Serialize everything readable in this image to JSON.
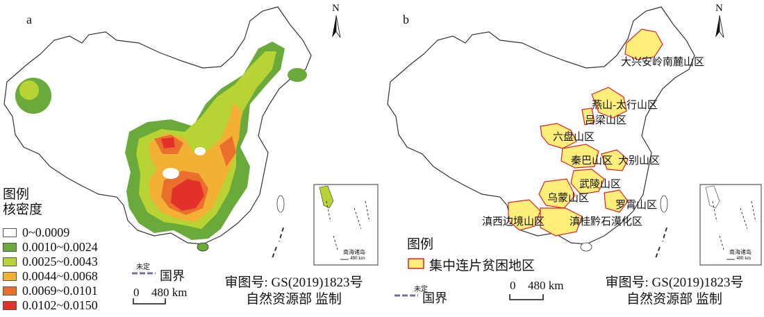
{
  "panel_a": {
    "letter": "a",
    "north_label": "N",
    "legend": {
      "title_line1": "图例",
      "title_line2": "核密度",
      "classes": [
        {
          "label": "0~0.0009",
          "color": "#ffffff"
        },
        {
          "label": "0.0010~0.0024",
          "color": "#6aaa3a"
        },
        {
          "label": "0.0025~0.0043",
          "color": "#b8d334"
        },
        {
          "label": "0.0044~0.0068",
          "color": "#f2b134"
        },
        {
          "label": "0.0069~0.0101",
          "color": "#eb6f2c"
        },
        {
          "label": "0.0102~0.0150",
          "color": "#e2312a"
        }
      ]
    },
    "border": {
      "undetermined": "未定",
      "national": "国界"
    },
    "scale": {
      "zero": "0",
      "distance": "480 km"
    },
    "approval": {
      "line1": "审图号: GS(2019)1823号",
      "line2": "自然资源部 监制"
    },
    "inset_label": "南海诸岛",
    "inset_scale": "480 km"
  },
  "panel_b": {
    "letter": "b",
    "north_label": "N",
    "legend": {
      "title": "图例",
      "item_label": "集中连片贫困地区",
      "item_color": "#ffef7a",
      "item_border": "#d22"
    },
    "border": {
      "undetermined": "未定",
      "national": "国界"
    },
    "scale": {
      "zero": "0",
      "distance": "480 km"
    },
    "approval": {
      "line1": "审图号: GS(2019)1823号",
      "line2": "自然资源部 监制"
    },
    "inset_label": "南海诸岛",
    "inset_scale": "480 km",
    "regions": [
      "大兴安岭南麓山区",
      "燕山-太行山区",
      "吕梁山区",
      "六盘山区",
      "秦巴山区",
      "大别山区",
      "武陵山区",
      "乌蒙山区",
      "罗霄山区",
      "滇西边境山区",
      "滇桂黔石漠化区"
    ]
  }
}
